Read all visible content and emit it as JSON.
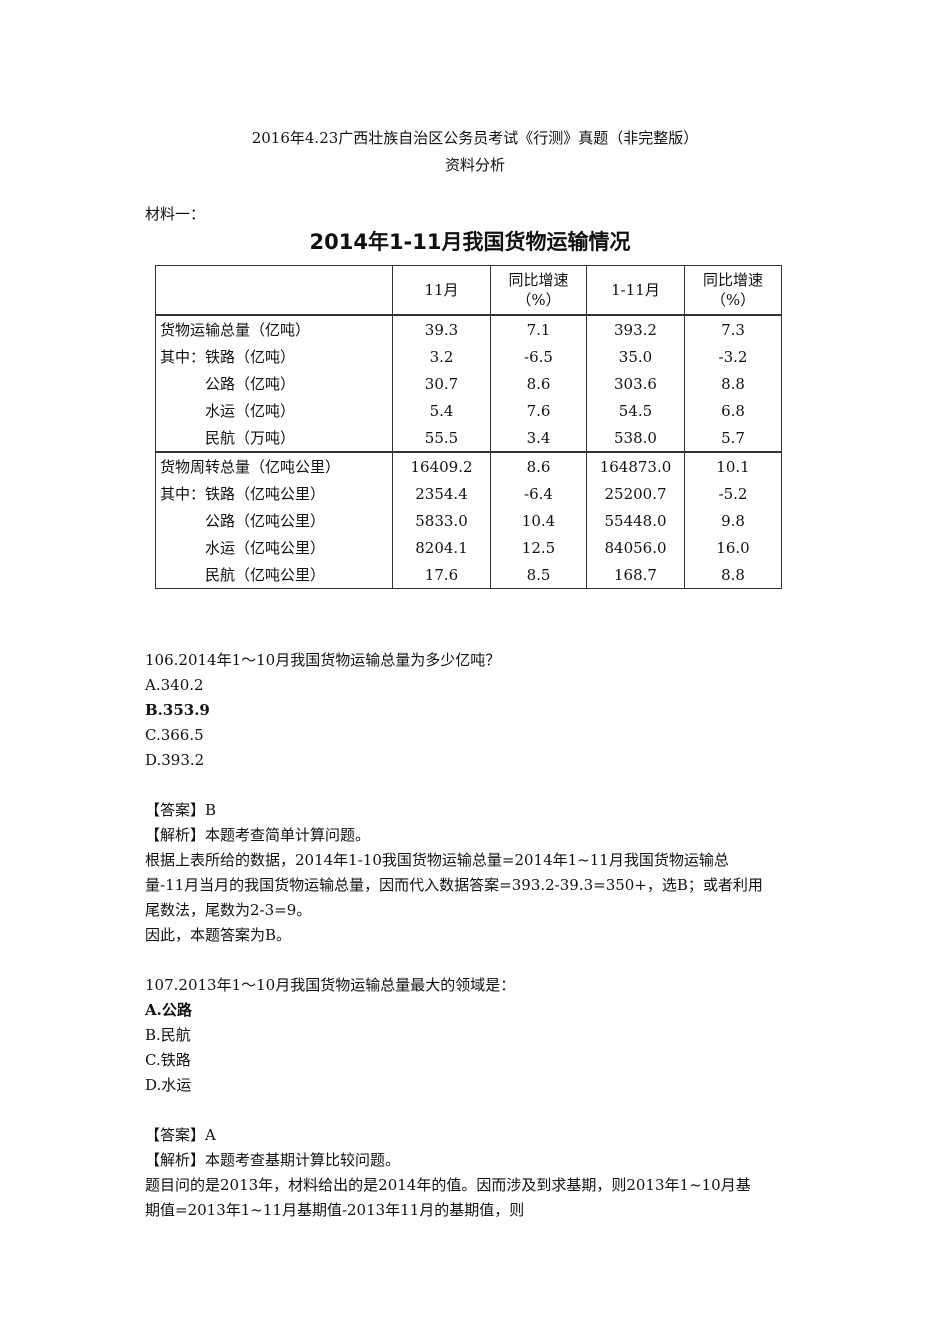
{
  "title": "2016年4.23广西壮族自治区公务员考试《行测》真题（非完整版）",
  "subtitle": "资料分析",
  "material_label": "材料一：",
  "table": {
    "title": "2014年1-11月我国货物运输情况",
    "headers": [
      "",
      "11月",
      "同比增速（%）",
      "1-11月",
      "同比增速（%）"
    ],
    "rows": [
      [
        "货物运输总量（亿吨）",
        "39.3",
        "7.1",
        "393.2",
        "7.3"
      ],
      [
        "其中：铁路（亿吨）",
        "3.2",
        "-6.5",
        "35.0",
        "-3.2"
      ],
      [
        "　　　公路（亿吨）",
        "30.7",
        "8.6",
        "303.6",
        "8.8"
      ],
      [
        "　　　水运（亿吨）",
        "5.4",
        "7.6",
        "54.5",
        "6.8"
      ],
      [
        "　　　民航（万吨）",
        "55.5",
        "3.4",
        "538.0",
        "5.7"
      ],
      [
        "货物周转总量（亿吨公里）",
        "16409.2",
        "8.6",
        "164873.0",
        "10.1"
      ],
      [
        "其中：铁路（亿吨公里）",
        "2354.4",
        "-6.4",
        "25200.7",
        "-5.2"
      ],
      [
        "　　　公路（亿吨公里）",
        "5833.0",
        "10.4",
        "55448.0",
        "9.8"
      ],
      [
        "　　　水运（亿吨公里）",
        "8204.1",
        "12.5",
        "84056.0",
        "16.0"
      ],
      [
        "　　　民航（亿吨公里）",
        "17.6",
        "8.5",
        "168.7",
        "8.8"
      ]
    ]
  },
  "q106": {
    "question": "106.2014年1～10月我国货物运输总量为多少亿吨？",
    "options": [
      "A.340.2",
      "B.353.9",
      "C.366.5",
      "D.393.2"
    ],
    "answer": "【答案】B",
    "analysis": [
      "【解析】本题考查简单计算问题。",
      "根据上表所给的数据，2014年1-10我国货物运输总量=2014年1~11月我国货物运输总",
      "量-11月当月的我国货物运输总量，因而代入数据答案=393.2-39.3=350+，选B；或者利用",
      "尾数法，尾数为2-3=9。",
      "因此，本题答案为B。"
    ]
  },
  "q107": {
    "question": "107.2013年1～10月我国货物运输总量最大的领域是：",
    "options": [
      "A.公路",
      "B.民航",
      "C.铁路",
      "D.水运"
    ],
    "answer": "【答案】A",
    "analysis": [
      "【解析】本题考查基期计算比较问题。",
      "题目问的是2013年，材料给出的是2014年的值。因而涉及到求基期，则2013年1~10月基",
      "期值=2013年1~11月基期值-2013年11月的基期值，则"
    ]
  }
}
